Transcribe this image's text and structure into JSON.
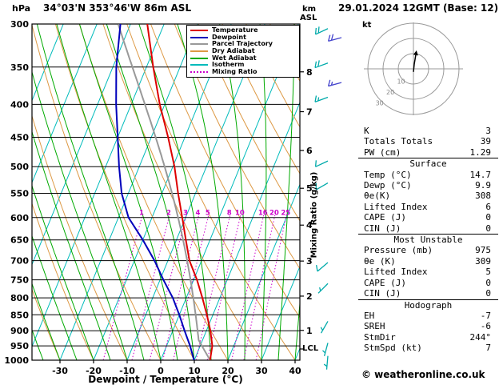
{
  "header": {
    "pressure_unit": "hPa",
    "station": "34°03'N 353°46'W 86m ASL",
    "datetime": "29.01.2024 12GMT (Base: 12)",
    "altitude_unit_line1": "km",
    "altitude_unit_line2": "ASL"
  },
  "axes": {
    "pressure_ticks": [
      300,
      350,
      400,
      450,
      500,
      550,
      600,
      650,
      700,
      750,
      800,
      850,
      900,
      950,
      1000
    ],
    "temp_ticks": [
      -30,
      -20,
      -10,
      0,
      10,
      20,
      30,
      40
    ],
    "x_label": "Dewpoint / Temperature (°C)",
    "km_ticks": [
      8,
      7,
      6,
      5,
      4,
      3,
      2,
      1
    ],
    "mixing_ratio_label": "Mixing Ratio (g/kg)",
    "lcl_label": "LCL"
  },
  "legend": [
    {
      "label": "Temperature",
      "color": "#dd0000",
      "dash": "solid"
    },
    {
      "label": "Dewpoint",
      "color": "#0000bb",
      "dash": "solid"
    },
    {
      "label": "Parcel Trajectory",
      "color": "#999999",
      "dash": "solid"
    },
    {
      "label": "Dry Adiabat",
      "color": "#dd9944",
      "dash": "solid"
    },
    {
      "label": "Wet Adiabat",
      "color": "#00aa00",
      "dash": "solid"
    },
    {
      "label": "Isotherm",
      "color": "#00bbbb",
      "dash": "solid"
    },
    {
      "label": "Mixing Ratio",
      "color": "#cc00cc",
      "dash": "dotted"
    }
  ],
  "chart_data": {
    "type": "skewt-log-p",
    "title": "34°03'N 353°46'W 86m ASL  29.01.2024 12GMT (Base: 12)",
    "pressure_range_hpa": [
      300,
      1000
    ],
    "temp_axis_range_c": [
      -40,
      45
    ],
    "pressure_hpa": [
      1000,
      950,
      900,
      850,
      800,
      750,
      700,
      650,
      600,
      550,
      500,
      450,
      400,
      350,
      300
    ],
    "temperature_c": [
      14.7,
      13.6,
      11.2,
      8.2,
      4.8,
      1.0,
      -3.6,
      -7.2,
      -11.0,
      -15.2,
      -19.5,
      -25.0,
      -31.5,
      -38.0,
      -45.0
    ],
    "dewpoint_c": [
      9.9,
      7.0,
      3.5,
      0.0,
      -4.0,
      -9.0,
      -14.0,
      -20.0,
      -27.0,
      -32.0,
      -36.0,
      -40.0,
      -44.5,
      -49.0,
      -53.0
    ],
    "parcel_surface": {
      "pressure_hpa": 1000,
      "temp_c": 14.7,
      "dewp_c": 9.9
    },
    "mixing_ratio_lines_gkg": [
      1,
      2,
      3,
      4,
      5,
      8,
      10,
      16,
      20,
      25
    ],
    "isotherm_step_c": 10,
    "dry_adiabat_step_c": 10,
    "wet_adiabat_step_c": 5,
    "wind_barbs": [
      {
        "p": 305,
        "dir": 245,
        "spd": 20,
        "col": "teal"
      },
      {
        "p": 345,
        "dir": 250,
        "spd": 20,
        "col": "teal"
      },
      {
        "p": 390,
        "dir": 250,
        "spd": 15,
        "col": "teal"
      },
      {
        "p": 490,
        "dir": 245,
        "spd": 10,
        "col": "teal"
      },
      {
        "p": 530,
        "dir": 240,
        "spd": 10,
        "col": "teal"
      },
      {
        "p": 705,
        "dir": 230,
        "spd": 10,
        "col": "teal"
      },
      {
        "p": 760,
        "dir": 225,
        "spd": 5,
        "col": "teal"
      },
      {
        "p": 870,
        "dir": 210,
        "spd": 5,
        "col": "teal"
      },
      {
        "p": 940,
        "dir": 195,
        "spd": 5,
        "col": "teal"
      },
      {
        "p": 985,
        "dir": 185,
        "spd": 7,
        "col": "teal"
      },
      {
        "p": 315,
        "dir": 255,
        "spd": 20,
        "col": "blue",
        "xoff": 17
      },
      {
        "p": 370,
        "dir": 255,
        "spd": 15,
        "col": "blue",
        "xoff": 17
      }
    ],
    "barb_colors": {
      "teal": "#00aaaa",
      "blue": "#4444cc"
    }
  },
  "hodograph": {
    "unit_label": "kt",
    "rings_kt": [
      10,
      20,
      30
    ],
    "trace_uv_kt": [
      [
        0,
        -2
      ],
      [
        0.5,
        3
      ],
      [
        1.5,
        9
      ]
    ],
    "storm_dir_deg": 244,
    "storm_spd_kt": 7
  },
  "panel": {
    "sections": [
      {
        "header": null,
        "rows": [
          [
            "K",
            "3"
          ],
          [
            "Totals Totals",
            "39"
          ],
          [
            "PW (cm)",
            "1.29"
          ]
        ]
      },
      {
        "header": "Surface",
        "rows": [
          [
            "Temp (°C)",
            "14.7"
          ],
          [
            "Dewp (°C)",
            "9.9"
          ],
          [
            "θe(K)",
            "308"
          ],
          [
            "Lifted Index",
            "6"
          ],
          [
            "CAPE (J)",
            "0"
          ],
          [
            "CIN (J)",
            "0"
          ]
        ]
      },
      {
        "header": "Most Unstable",
        "rows": [
          [
            "Pressure (mb)",
            "975"
          ],
          [
            "θe (K)",
            "309"
          ],
          [
            "Lifted Index",
            "5"
          ],
          [
            "CAPE (J)",
            "0"
          ],
          [
            "CIN (J)",
            "0"
          ]
        ]
      },
      {
        "header": "Hodograph",
        "rows": [
          [
            "EH",
            "-7"
          ],
          [
            "SREH",
            "-6"
          ],
          [
            "StmDir",
            "244°"
          ],
          [
            "StmSpd (kt)",
            "7"
          ]
        ]
      }
    ]
  },
  "footer": {
    "copyright": "© weatheronline.co.uk"
  }
}
